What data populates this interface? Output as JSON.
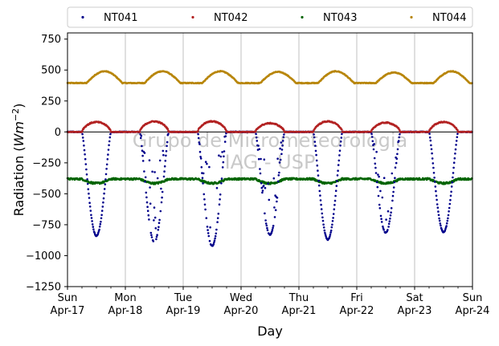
{
  "chart_data": {
    "type": "scatter",
    "title": "",
    "xlabel": "Day",
    "ylabel": "Radiation (Wm⁻²)",
    "ylim": [
      -1250,
      800
    ],
    "xlim": [
      "2022-04-17",
      "2022-04-24"
    ],
    "yticks": [
      -1250,
      -1000,
      -750,
      -500,
      -250,
      0,
      250,
      500,
      750
    ],
    "xticks": [
      {
        "date": "2022-04-17",
        "day": "Sun",
        "label": "Apr-17"
      },
      {
        "date": "2022-04-18",
        "day": "Mon",
        "label": "Apr-18"
      },
      {
        "date": "2022-04-19",
        "day": "Tue",
        "label": "Apr-19"
      },
      {
        "date": "2022-04-20",
        "day": "Wed",
        "label": "Apr-20"
      },
      {
        "date": "2022-04-21",
        "day": "Thu",
        "label": "Apr-21"
      },
      {
        "date": "2022-04-22",
        "day": "Fri",
        "label": "Apr-22"
      },
      {
        "date": "2022-04-23",
        "day": "Sat",
        "label": "Apr-23"
      },
      {
        "date": "2022-04-24",
        "day": "Sun",
        "label": "Apr-24"
      }
    ],
    "grid": "vertical",
    "legend_position": "top",
    "zero_line": true,
    "watermark": [
      "Grupo de Micrometeorologia",
      "IAG - USP"
    ],
    "series": [
      {
        "name": "NT041",
        "color": "#00008b",
        "description_values": {
          "night": 0,
          "daily_minimum": [
            -840,
            -890,
            -920,
            -830,
            -870,
            -815,
            -810
          ]
        }
      },
      {
        "name": "NT042",
        "color": "#b22222",
        "description_values": {
          "night": 0,
          "daily_peak": [
            80,
            85,
            85,
            70,
            85,
            75,
            80
          ]
        }
      },
      {
        "name": "NT043",
        "color": "#006400",
        "description_values": {
          "night": -380,
          "day": -415
        }
      },
      {
        "name": "NT044",
        "color": "#b8860b",
        "description_values": {
          "night": 395,
          "daily_peak": [
            490,
            490,
            490,
            485,
            490,
            480,
            490
          ]
        }
      }
    ]
  }
}
